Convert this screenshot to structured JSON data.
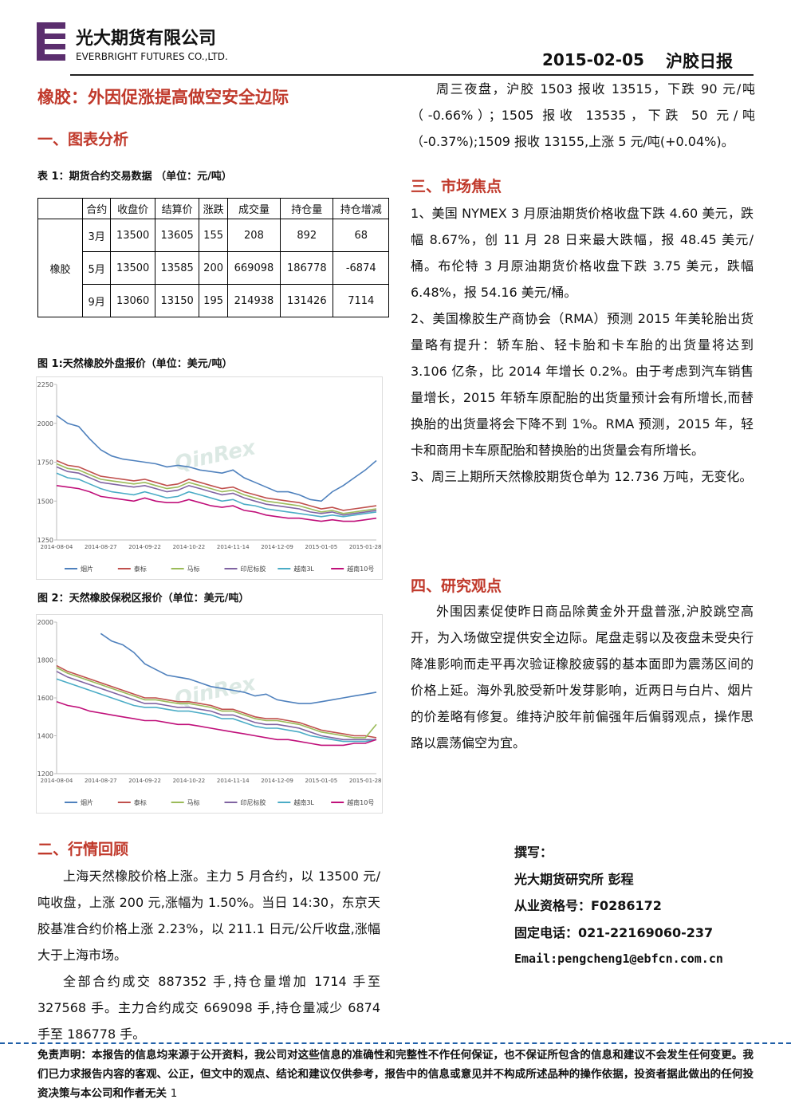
{
  "header": {
    "company": "光大期货有限公司",
    "company_en": "EVERBRIGHT FUTURES CO.,LTD.",
    "date": "2015-02-05",
    "report": "沪胶日报"
  },
  "title": "橡胶：外因促涨提高做空安全边际",
  "section1": {
    "heading": "一、图表分析",
    "table_caption": "表 1：期货合约交易数据 （单位：元/吨）"
  },
  "table": {
    "header": [
      "合约",
      "收盘价",
      "结算价",
      "涨跌",
      "成交量",
      "持仓量",
      "持仓增减"
    ],
    "group": "橡胶",
    "rows": [
      [
        "3月",
        13500,
        13605,
        155,
        208,
        892,
        68
      ],
      [
        "5月",
        13500,
        13585,
        200,
        669098,
        186778,
        -6874
      ],
      [
        "9月",
        13060,
        13150,
        195,
        214938,
        131426,
        7114
      ]
    ]
  },
  "chart_data": [
    {
      "type": "line",
      "title": "图 1:天然橡胶外盘报价（单位：美元/吨）",
      "watermark": "QinRex",
      "grid": false,
      "categories": [
        "2014-08-04",
        null,
        null,
        null,
        "2014-08-27",
        null,
        null,
        null,
        "2014-09-22",
        null,
        null,
        null,
        "2014-10-22",
        null,
        null,
        null,
        "2014-11-14",
        null,
        null,
        null,
        "2014-12-09",
        null,
        null,
        null,
        "2015-01-05",
        null,
        null,
        null,
        "2015-01-28",
        null
      ],
      "ylim": [
        1250,
        2250
      ],
      "yticks": [
        1250,
        1500,
        1750,
        2000,
        2250
      ],
      "series": [
        {
          "name": "烟片",
          "color": "#4f81bd",
          "values": [
            2050,
            2000,
            1980,
            1900,
            1830,
            1790,
            1770,
            1760,
            1750,
            1740,
            1720,
            1730,
            1720,
            1700,
            1690,
            1680,
            1700,
            1650,
            1620,
            1590,
            1560,
            1560,
            1540,
            1510,
            1500,
            1560,
            1600,
            1650,
            1700,
            1760
          ]
        },
        {
          "name": "泰标",
          "color": "#c0504d",
          "values": [
            1760,
            1730,
            1720,
            1690,
            1660,
            1650,
            1640,
            1630,
            1640,
            1620,
            1600,
            1610,
            1640,
            1620,
            1600,
            1580,
            1590,
            1560,
            1540,
            1520,
            1510,
            1500,
            1490,
            1470,
            1450,
            1460,
            1440,
            1450,
            1460,
            1470
          ]
        },
        {
          "name": "马标",
          "color": "#9bbb59",
          "values": [
            1740,
            1710,
            1700,
            1670,
            1640,
            1630,
            1620,
            1610,
            1620,
            1600,
            1580,
            1590,
            1620,
            1600,
            1580,
            1560,
            1570,
            1540,
            1520,
            1500,
            1490,
            1480,
            1470,
            1450,
            1430,
            1440,
            1420,
            1430,
            1440,
            1450
          ]
        },
        {
          "name": "印尼标胶",
          "color": "#8064a2",
          "values": [
            1720,
            1690,
            1680,
            1650,
            1620,
            1610,
            1600,
            1590,
            1600,
            1580,
            1560,
            1570,
            1600,
            1580,
            1560,
            1540,
            1550,
            1520,
            1500,
            1480,
            1470,
            1460,
            1450,
            1430,
            1420,
            1430,
            1410,
            1420,
            1430,
            1440
          ]
        },
        {
          "name": "越南3L",
          "color": "#4bacc6",
          "values": [
            1680,
            1650,
            1640,
            1610,
            1580,
            1560,
            1550,
            1540,
            1560,
            1540,
            1520,
            1530,
            1560,
            1540,
            1520,
            1500,
            1510,
            1480,
            1470,
            1450,
            1440,
            1430,
            1420,
            1410,
            1400,
            1410,
            1400,
            1410,
            1420,
            1430
          ]
        },
        {
          "name": "越南10号",
          "color": "#c0107a",
          "values": [
            1600,
            1590,
            1580,
            1560,
            1530,
            1520,
            1510,
            1500,
            1520,
            1500,
            1490,
            1490,
            1510,
            1490,
            1470,
            1460,
            1470,
            1440,
            1430,
            1410,
            1400,
            1390,
            1390,
            1380,
            1370,
            1380,
            1370,
            1370,
            1380,
            1390
          ]
        }
      ]
    },
    {
      "type": "line",
      "title": "图 2：天然橡胶保税区报价（单位：美元/吨）",
      "watermark": "QinRex",
      "grid": false,
      "categories": [
        "2014-08-04",
        null,
        null,
        null,
        "2014-08-27",
        null,
        null,
        null,
        "2014-09-22",
        null,
        null,
        null,
        "2014-10-22",
        null,
        null,
        null,
        "2014-11-14",
        null,
        null,
        null,
        "2014-12-09",
        null,
        null,
        null,
        "2015-01-05",
        null,
        null,
        null,
        "2015-01-28",
        null
      ],
      "ylim": [
        1200,
        2000
      ],
      "yticks": [
        1200,
        1400,
        1600,
        1800,
        2000
      ],
      "series": [
        {
          "name": "烟片",
          "color": "#4f81bd",
          "values": [
            null,
            null,
            null,
            null,
            1940,
            1900,
            1880,
            1840,
            1780,
            1750,
            1720,
            1710,
            1700,
            1680,
            1660,
            1650,
            1640,
            1630,
            1610,
            1620,
            1590,
            1580,
            1570,
            1570,
            1580,
            1590,
            1600,
            1610,
            1620,
            1630
          ]
        },
        {
          "name": "泰标",
          "color": "#c0504d",
          "values": [
            1770,
            1740,
            1720,
            1700,
            1680,
            1660,
            1640,
            1620,
            1600,
            1600,
            1590,
            1580,
            1580,
            1570,
            1560,
            1540,
            1540,
            1520,
            1500,
            1490,
            1490,
            1480,
            1470,
            1450,
            1430,
            1420,
            1410,
            1400,
            1400,
            1390
          ]
        },
        {
          "name": "马标",
          "color": "#9bbb59",
          "values": [
            1760,
            1730,
            1710,
            1690,
            1670,
            1650,
            1630,
            1610,
            1590,
            1590,
            1580,
            1570,
            1570,
            1560,
            1550,
            1530,
            1530,
            1510,
            1490,
            1480,
            1480,
            1470,
            1460,
            1440,
            1420,
            1410,
            1400,
            1390,
            1390,
            1460
          ]
        },
        {
          "name": "印尼标胶",
          "color": "#8064a2",
          "values": [
            1740,
            1710,
            1690,
            1670,
            1650,
            1630,
            1610,
            1590,
            1570,
            1570,
            1560,
            1550,
            1550,
            1540,
            1530,
            1510,
            1510,
            1490,
            1470,
            1460,
            1460,
            1450,
            1440,
            1420,
            1400,
            1390,
            1380,
            1380,
            1380,
            1380
          ]
        },
        {
          "name": "越南3L",
          "color": "#4bacc6",
          "values": [
            1700,
            1680,
            1660,
            1640,
            1620,
            1600,
            1580,
            1560,
            1550,
            1550,
            1540,
            1530,
            1530,
            1520,
            1510,
            1490,
            1490,
            1470,
            1450,
            1440,
            1440,
            1430,
            1420,
            1400,
            1390,
            1380,
            1370,
            1370,
            1370,
            1380
          ]
        },
        {
          "name": "越南10号",
          "color": "#c0107a",
          "values": [
            1580,
            1560,
            1550,
            1530,
            1520,
            1510,
            1500,
            1490,
            1480,
            1480,
            1470,
            1460,
            1460,
            1450,
            1440,
            1430,
            1420,
            1410,
            1400,
            1390,
            1380,
            1380,
            1370,
            1360,
            1350,
            1350,
            1350,
            1360,
            1360,
            1380
          ]
        }
      ]
    }
  ],
  "section2": {
    "heading": "二、行情回顾",
    "paragraphs": [
      "上海天然橡胶价格上涨。主力 5 月合约，以 13500 元/吨收盘，上涨 200 元,涨幅为 1.50%。当日 14:30，东京天胶基准合约价格上涨 2.23%，以 211.1 日元/公斤收盘,涨幅大于上海市场。",
      "全部合约成交 887352 手,持仓量增加 1714 手至 327568 手。主力合约成交 669098 手,持仓量减少 6874 手至 186778 手。"
    ]
  },
  "night": "周三夜盘，沪胶 1503 报收 13515，下跌 90 元/吨（-0.66%）；1505 报收 13535，下跌 50 元/吨（-0.37%);1509 报收 13155,上涨 5 元/吨(+0.04%)。",
  "section3": {
    "heading": "三、市场焦点",
    "paragraphs": [
      "1、美国 NYMEX 3 月原油期货价格收盘下跌 4.60 美元，跌幅 8.67%，创 11 月 28 日来最大跌幅，报 48.45 美元/桶。布伦特 3 月原油期货价格收盘下跌 3.75 美元，跌幅 6.48%，报 54.16 美元/桶。",
      "2、美国橡胶生产商协会（RMA）预测 2015 年美轮胎出货量略有提升：轿车胎、轻卡胎和卡车胎的出货量将达到 3.106 亿条，比 2014 年增长 0.2%。由于考虑到汽车销售量增长，2015 年轿车原配胎的出货量预计会有所增长,而替换胎的出货量将会下降不到 1%。RMA 预测，2015 年，轻卡和商用卡车原配胎和替换胎的出货量会有所增长。",
      "3、周三上期所天然橡胶期货仓单为 12.736 万吨，无变化。"
    ]
  },
  "section4": {
    "heading": "四、研究观点",
    "paragraphs": [
      "外围因素促使昨日商品除黄金外开盘普涨,沪胶跳空高开，为入场做空提供安全边际。尾盘走弱以及夜盘未受央行降准影响而走平再次验证橡胶疲弱的基本面即为震荡区间的价格上延。海外乳胶受新叶发芽影响，近两日与白片、烟片的价差略有修复。维持沪胶年前偏强年后偏弱观点，操作思路以震荡偏空为宜。"
    ]
  },
  "author": [
    "撰写：",
    "光大期货研究所 彭程",
    "从业资格号：F0286172",
    "固定电话：021-22169060-237",
    "Email:pengcheng1@ebfcn.com.cn"
  ],
  "footer": {
    "disclaimer": "免责声明：本报告的信息均来源于公开资料，我公司对这些信息的准确性和完整性不作任何保证，也不保证所包含的信息和建议不会发生任何变更。我们已力求报告内容的客观、公正，但文中的观点、结论和建议仅供参考，报告中的信息或意见并不构成所述品种的操作依据，投资者据此做出的任何投资决策与本公司和作者无关",
    "page": "1"
  }
}
